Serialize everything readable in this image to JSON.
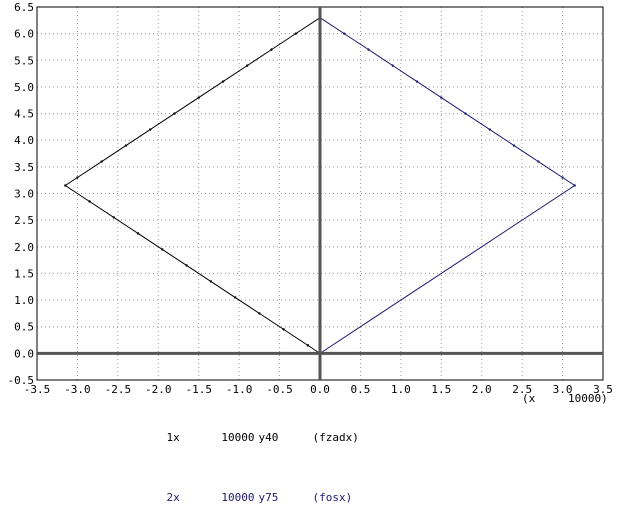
{
  "chart_data": {
    "type": "line",
    "title": "",
    "xlabel": "(x",
    "xscale_label": "10000)",
    "ylabel": "",
    "xlim": [
      -3.5,
      3.5
    ],
    "ylim": [
      -0.5,
      6.5
    ],
    "x_ticks": [
      -3.5,
      -3.0,
      -2.5,
      -2.0,
      -1.5,
      -1.0,
      -0.5,
      0.0,
      0.5,
      1.0,
      1.5,
      2.0,
      2.5,
      3.0,
      3.5
    ],
    "y_ticks": [
      -0.5,
      0.0,
      0.5,
      1.0,
      1.5,
      2.0,
      2.5,
      3.0,
      3.5,
      4.0,
      4.5,
      5.0,
      5.5,
      6.0,
      6.5
    ],
    "x_tick_labels": [
      "-3.5",
      "-3.0",
      "-2.5",
      "-2.0",
      "-1.5",
      "-1.0",
      "-0.5",
      "0.0",
      "0.5",
      "1.0",
      "1.5",
      "2.0",
      "2.5",
      "3.0",
      "3.5"
    ],
    "y_tick_labels": [
      "-0.5",
      "0.0",
      "0.5",
      "1.0",
      "1.5",
      "2.0",
      "2.5",
      "3.0",
      "3.5",
      "4.0",
      "4.5",
      "5.0",
      "5.5",
      "6.0",
      "6.5"
    ],
    "grid": true,
    "series": [
      {
        "name": "(fzadx)",
        "color": "#000000",
        "x": [
          0.0,
          -0.3,
          -0.6,
          -0.9,
          -1.2,
          -1.5,
          -1.8,
          -2.1,
          -2.4,
          -2.7,
          -3.0,
          -3.15,
          -2.85,
          -2.55,
          -2.25,
          -1.95,
          -1.65,
          -1.35,
          -1.05,
          -0.75,
          -0.45,
          -0.15,
          0.0
        ],
        "y": [
          6.3,
          6.0,
          5.7,
          5.4,
          5.1,
          4.8,
          4.5,
          4.2,
          3.9,
          3.6,
          3.3,
          3.15,
          2.85,
          2.55,
          2.25,
          1.95,
          1.65,
          1.35,
          1.05,
          0.75,
          0.45,
          0.15,
          0.0
        ]
      },
      {
        "name": "(fosx)",
        "color": "#1a1a6e",
        "x": [
          0.0,
          0.3,
          0.6,
          0.9,
          1.2,
          1.5,
          1.8,
          2.1,
          2.4,
          2.7,
          3.0,
          3.15,
          0.0
        ],
        "y": [
          6.3,
          6.0,
          5.7,
          5.4,
          5.1,
          4.8,
          4.5,
          4.2,
          3.9,
          3.6,
          3.3,
          3.15,
          0.0
        ]
      }
    ]
  },
  "legend": [
    {
      "id": "1x",
      "scale": "10000",
      "y": "y40",
      "name": "(fzadx)",
      "color": "#000000"
    },
    {
      "id": "2x",
      "scale": "10000",
      "y": "y75",
      "name": "(fosx)",
      "color": "#1a1a6e"
    }
  ]
}
